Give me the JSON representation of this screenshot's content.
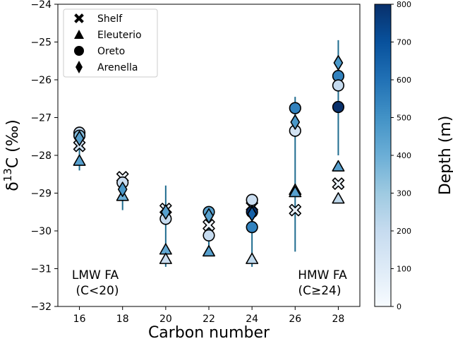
{
  "chart_data": {
    "type": "scatter",
    "xlabel": "Carbon number",
    "ylabel": "δ ¹³C (‰)",
    "ylabel_parts": {
      "delta": "δ",
      "sup": "13",
      "rest": "C (‰)"
    },
    "xlim": [
      15,
      29
    ],
    "ylim": [
      -32,
      -24
    ],
    "xticks": [
      16,
      18,
      20,
      22,
      24,
      26,
      28
    ],
    "yticks": [
      -32,
      -31,
      -30,
      -29,
      -28,
      -27,
      -26,
      -25,
      -24
    ],
    "ytick_labels": [
      "−32",
      "−31",
      "−30",
      "−29",
      "−28",
      "−27",
      "−26",
      "−25",
      "−24"
    ],
    "legend_position": "upper-left",
    "colorbar": {
      "label": "Depth (m)",
      "range": [
        0,
        800
      ],
      "ticks": [
        0,
        100,
        200,
        300,
        400,
        500,
        600,
        700,
        800
      ],
      "colormap": "Blues"
    },
    "annotations": [
      {
        "id": "lmw",
        "lines": [
          "LMW FA",
          "(C<20)"
        ],
        "x": 16.8,
        "y": -31.35
      },
      {
        "id": "hmw",
        "lines": [
          "HMW FA",
          "(C≥24)"
        ],
        "x": 27.2,
        "y": -31.35
      }
    ],
    "series": [
      {
        "name": "Shelf",
        "marker": "X",
        "points": [
          {
            "x": 16,
            "y": -27.75,
            "depth": 150
          },
          {
            "x": 18,
            "y": -28.58,
            "depth": 30
          },
          {
            "x": 20,
            "y": -29.42,
            "depth": 60
          },
          {
            "x": 22,
            "y": -29.85,
            "depth": 30
          },
          {
            "x": 24,
            "y": -29.35,
            "depth": 120
          },
          {
            "x": 26,
            "y": -29.45,
            "depth": 60
          },
          {
            "x": 28,
            "y": -28.75,
            "depth": 50
          }
        ]
      },
      {
        "name": "Eleuterio",
        "marker": "triangle",
        "points": [
          {
            "x": 16,
            "y": -28.15,
            "depth": 450
          },
          {
            "x": 18,
            "y": -29.08,
            "depth": 400
          },
          {
            "x": 20,
            "y": -30.5,
            "depth": 420
          },
          {
            "x": 20,
            "y": -30.75,
            "depth": 180
          },
          {
            "x": 22,
            "y": -30.55,
            "depth": 450
          },
          {
            "x": 24,
            "y": -30.75,
            "depth": 220
          },
          {
            "x": 26,
            "y": -28.92,
            "depth": 180
          },
          {
            "x": 26,
            "y": -28.98,
            "depth": 450
          },
          {
            "x": 28,
            "y": -28.3,
            "depth": 450
          },
          {
            "x": 28,
            "y": -29.15,
            "depth": 220
          }
        ]
      },
      {
        "name": "Oreto",
        "marker": "circle",
        "points": [
          {
            "x": 16,
            "y": -27.4,
            "depth": 200
          },
          {
            "x": 16,
            "y": -27.48,
            "depth": 350
          },
          {
            "x": 18,
            "y": -28.72,
            "depth": 180
          },
          {
            "x": 20,
            "y": -29.68,
            "depth": 200
          },
          {
            "x": 22,
            "y": -29.5,
            "depth": 450
          },
          {
            "x": 22,
            "y": -30.12,
            "depth": 200
          },
          {
            "x": 24,
            "y": -29.18,
            "depth": 180
          },
          {
            "x": 24,
            "y": -29.5,
            "depth": 800
          },
          {
            "x": 24,
            "y": -29.9,
            "depth": 550
          },
          {
            "x": 26,
            "y": -26.75,
            "depth": 550
          },
          {
            "x": 26,
            "y": -27.35,
            "depth": 150
          },
          {
            "x": 28,
            "y": -25.9,
            "depth": 550
          },
          {
            "x": 28,
            "y": -26.15,
            "depth": 200
          },
          {
            "x": 28,
            "y": -26.72,
            "depth": 800
          }
        ]
      },
      {
        "name": "Arenella",
        "marker": "diamond",
        "points": [
          {
            "x": 16,
            "y": -27.55,
            "depth": 450
          },
          {
            "x": 18,
            "y": -28.9,
            "depth": 480
          },
          {
            "x": 20,
            "y": -29.5,
            "depth": 450
          },
          {
            "x": 22,
            "y": -29.6,
            "depth": 450
          },
          {
            "x": 24,
            "y": -29.55,
            "depth": 650
          },
          {
            "x": 26,
            "y": -27.12,
            "depth": 480
          },
          {
            "x": 28,
            "y": -25.55,
            "depth": 480
          }
        ]
      }
    ],
    "error_bars": [
      {
        "x": 16,
        "y_low": -28.4,
        "y_high": -27.3
      },
      {
        "x": 18,
        "y_low": -29.45,
        "y_high": -28.5
      },
      {
        "x": 20,
        "y_low": -30.95,
        "y_high": -28.8
      },
      {
        "x": 22,
        "y_low": -30.4,
        "y_high": -29.4
      },
      {
        "x": 24,
        "y_low": -30.95,
        "y_high": -29.2
      },
      {
        "x": 26,
        "y_low": -30.55,
        "y_high": -26.45
      },
      {
        "x": 28,
        "y_low": -28.0,
        "y_high": -24.95
      }
    ]
  }
}
